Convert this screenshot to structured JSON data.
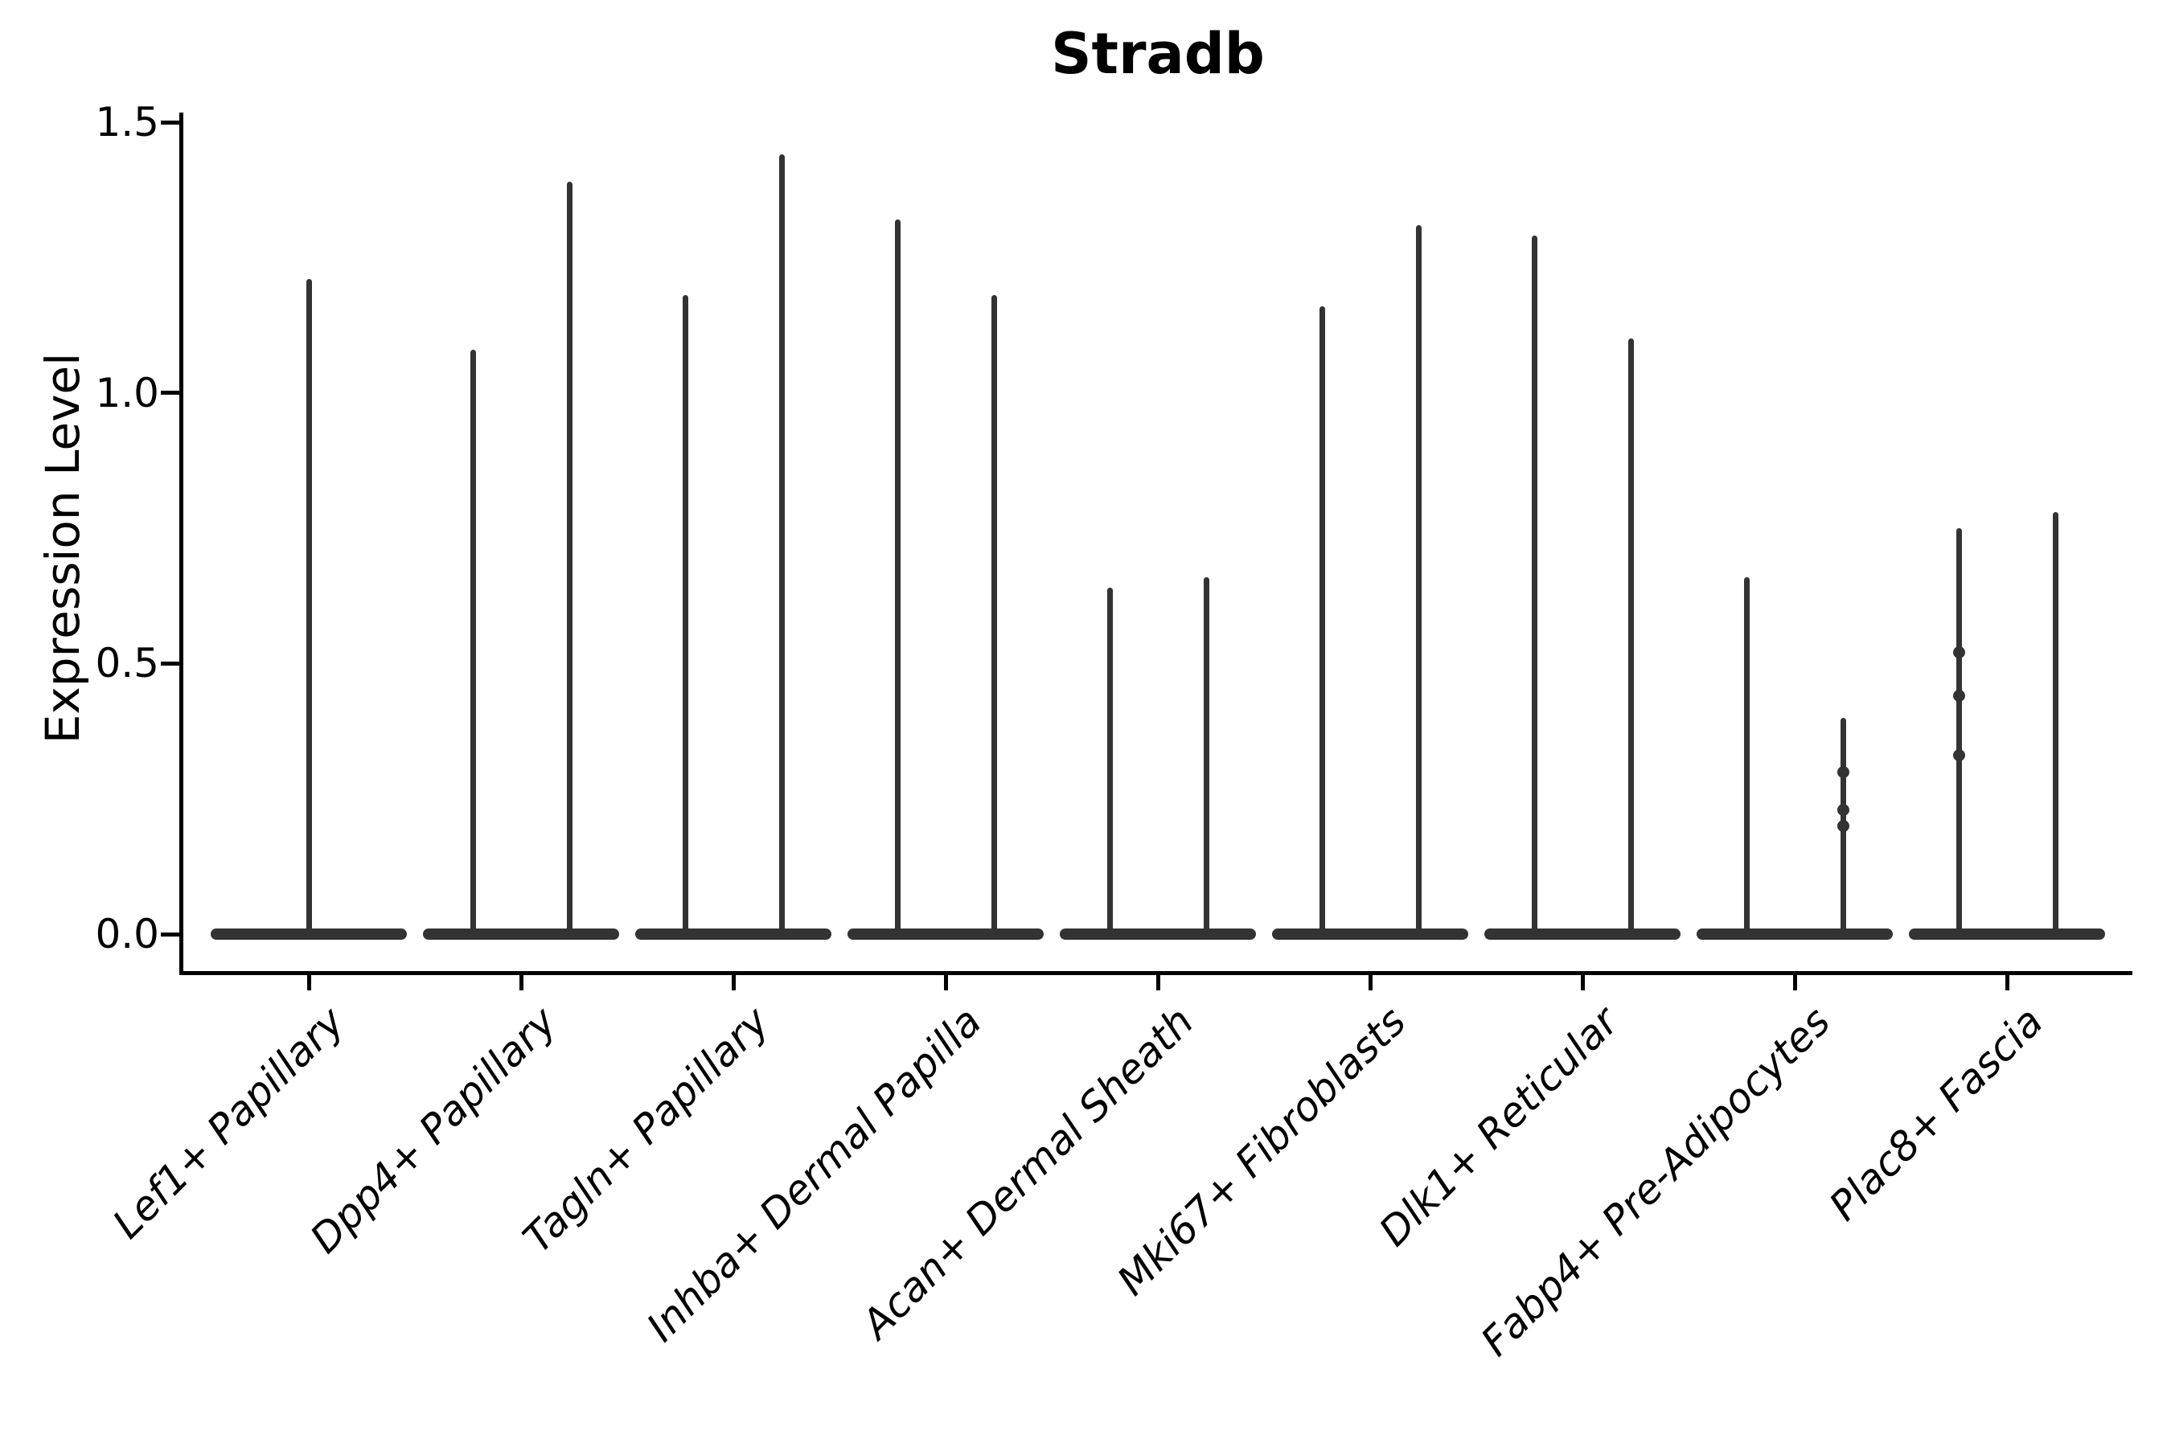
{
  "figure": {
    "title": "Stradb",
    "background_color": "#ffffff",
    "violin_color": "#333333",
    "axis_color": "#000000"
  },
  "chart_data": {
    "type": "violin",
    "title": "Stradb",
    "xlabel": "",
    "ylabel": "Expression Level",
    "ylim": [
      0,
      1.5
    ],
    "y_ticks": [
      {
        "label": "0.0",
        "value": 0.0
      },
      {
        "label": "0.5",
        "value": 0.5
      },
      {
        "label": "1.0",
        "value": 1.0
      },
      {
        "label": "1.5",
        "value": 1.5
      }
    ],
    "x_tick_rotation_deg": 45,
    "grid": false,
    "legend": "none",
    "description": "Zero-inflated single-cell expression violins: each violin is a wide flat bulge at 0 with a needle-thin spike up to the maximum expressed value. Categories 2-9 contain two side-by-side violins; category 1 has a single centered violin.",
    "categories": [
      "Lef1+ Papillary",
      "Dpp4+ Papillary",
      "Tagln+ Papillary",
      "Inhba+ Dermal Papilla",
      "Acan+ Dermal Sheath",
      "Mki67+ Fibroblasts",
      "Dlk1+ Reticular",
      "Fabp4+ Pre-Adipocytes",
      "Plac8+ Fascia"
    ],
    "violins": [
      {
        "category": "Lef1+ Papillary",
        "groups": [
          {
            "x_offset": 0,
            "max": 1.21,
            "points": []
          }
        ]
      },
      {
        "category": "Dpp4+ Papillary",
        "groups": [
          {
            "x_offset": -60,
            "max": 1.08,
            "points": []
          },
          {
            "x_offset": 60,
            "max": 1.39,
            "points": []
          }
        ]
      },
      {
        "category": "Tagln+ Papillary",
        "groups": [
          {
            "x_offset": -60,
            "max": 1.18,
            "points": []
          },
          {
            "x_offset": 60,
            "max": 1.44,
            "points": []
          }
        ]
      },
      {
        "category": "Inhba+ Dermal Papilla",
        "groups": [
          {
            "x_offset": -60,
            "max": 1.32,
            "points": []
          },
          {
            "x_offset": 60,
            "max": 1.18,
            "points": []
          }
        ]
      },
      {
        "category": "Acan+ Dermal Sheath",
        "groups": [
          {
            "x_offset": -60,
            "max": 0.64,
            "points": []
          },
          {
            "x_offset": 60,
            "max": 0.66,
            "points": []
          }
        ]
      },
      {
        "category": "Mki67+ Fibroblasts",
        "groups": [
          {
            "x_offset": -60,
            "max": 1.16,
            "points": []
          },
          {
            "x_offset": 60,
            "max": 1.31,
            "points": []
          }
        ]
      },
      {
        "category": "Dlk1+ Reticular",
        "groups": [
          {
            "x_offset": -60,
            "max": 1.29,
            "points": []
          },
          {
            "x_offset": 60,
            "max": 1.1,
            "points": []
          }
        ]
      },
      {
        "category": "Fabp4+ Pre-Adipocytes",
        "groups": [
          {
            "x_offset": -60,
            "max": 0.66,
            "points": []
          },
          {
            "x_offset": 60,
            "max": 0.4,
            "points": [
              0.3,
              0.23,
              0.2
            ]
          }
        ]
      },
      {
        "category": "Plac8+ Fascia",
        "groups": [
          {
            "x_offset": -60,
            "max": 0.75,
            "points": [
              0.52,
              0.44,
              0.33
            ]
          },
          {
            "x_offset": 60,
            "max": 0.78,
            "points": []
          }
        ]
      }
    ]
  }
}
